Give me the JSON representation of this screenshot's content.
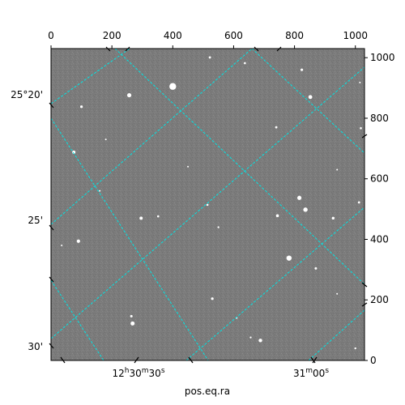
{
  "chart_data": {
    "type": "image",
    "xlabel": "pos.eq.ra",
    "pixel_axes": {
      "top": {
        "ticks": [
          0,
          200,
          400,
          600,
          800,
          1000
        ],
        "range": [
          0,
          1030
        ]
      },
      "right": {
        "ticks": [
          0,
          200,
          400,
          600,
          800,
          1000
        ],
        "range": [
          0,
          1030
        ]
      }
    },
    "world_axes": {
      "ra_ticks": [
        {
          "label_main": "12",
          "sup1": "h",
          "mid": "30",
          "sup2": "m",
          "end": "30",
          "sup3": "s"
        },
        {
          "label_main": "31",
          "sup1": "m",
          "mid": "00",
          "sup2": "s",
          "end": "",
          "sup3": ""
        }
      ],
      "dec_ticks": [
        "25°20'",
        "25'",
        "30'"
      ]
    },
    "grid": true,
    "grid_color": "#00e5e5",
    "background_color": "#7b7b7b",
    "stars": [
      {
        "x": 400,
        "y": 905,
        "r": 4.2
      },
      {
        "x": 257,
        "y": 876,
        "r": 2.6
      },
      {
        "x": 852,
        "y": 870,
        "r": 2.4
      },
      {
        "x": 100,
        "y": 838,
        "r": 1.6
      },
      {
        "x": 75,
        "y": 688,
        "r": 2.0
      },
      {
        "x": 824,
        "y": 960,
        "r": 1.6
      },
      {
        "x": 522,
        "y": 1001,
        "r": 1.4
      },
      {
        "x": 637,
        "y": 982,
        "r": 1.3
      },
      {
        "x": 740,
        "y": 770,
        "r": 1.4
      },
      {
        "x": 1018,
        "y": 767,
        "r": 1.3
      },
      {
        "x": 816,
        "y": 537,
        "r": 2.6
      },
      {
        "x": 836,
        "y": 498,
        "r": 2.7
      },
      {
        "x": 296,
        "y": 470,
        "r": 2.0
      },
      {
        "x": 744,
        "y": 478,
        "r": 1.8
      },
      {
        "x": 927,
        "y": 470,
        "r": 1.7
      },
      {
        "x": 1012,
        "y": 522,
        "r": 1.4
      },
      {
        "x": 514,
        "y": 514,
        "r": 1.3
      },
      {
        "x": 550,
        "y": 440,
        "r": 1.2
      },
      {
        "x": 352,
        "y": 476,
        "r": 1.3
      },
      {
        "x": 90,
        "y": 394,
        "r": 2.1
      },
      {
        "x": 782,
        "y": 338,
        "r": 3.2
      },
      {
        "x": 870,
        "y": 304,
        "r": 1.5
      },
      {
        "x": 530,
        "y": 204,
        "r": 1.6
      },
      {
        "x": 264,
        "y": 146,
        "r": 1.5
      },
      {
        "x": 268,
        "y": 122,
        "r": 2.5
      },
      {
        "x": 688,
        "y": 66,
        "r": 2.2
      },
      {
        "x": 1000,
        "y": 40,
        "r": 1.2
      },
      {
        "x": 656,
        "y": 76,
        "r": 1.1
      },
      {
        "x": 35,
        "y": 380,
        "r": 1.0
      },
      {
        "x": 1015,
        "y": 918,
        "r": 1.0
      },
      {
        "x": 940,
        "y": 220,
        "r": 1.0
      },
      {
        "x": 160,
        "y": 560,
        "r": 1.0
      },
      {
        "x": 610,
        "y": 140,
        "r": 1.0
      },
      {
        "x": 450,
        "y": 640,
        "r": 1.0
      },
      {
        "x": 180,
        "y": 730,
        "r": 1.0
      },
      {
        "x": 940,
        "y": 630,
        "r": 1.0
      }
    ]
  }
}
